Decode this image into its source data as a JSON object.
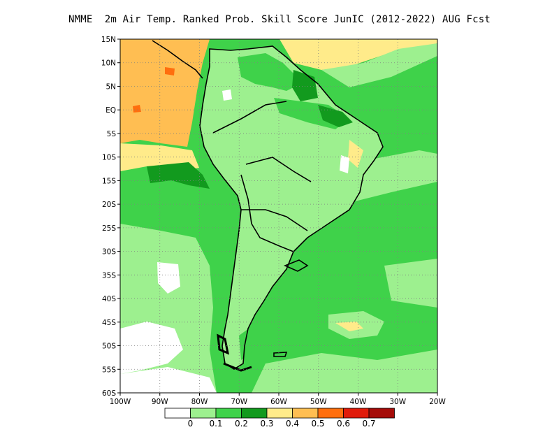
{
  "title": "NMME  2m Air Temp. Ranked Prob. Skill Score JunIC (2012-2022) AUG Fcst",
  "map": {
    "lat_labels": [
      "15N",
      "10N",
      "5N",
      "EQ",
      "5S",
      "10S",
      "15S",
      "20S",
      "25S",
      "30S",
      "35S",
      "40S",
      "45S",
      "50S",
      "55S",
      "60S"
    ],
    "lon_labels": [
      "100W",
      "90W",
      "80W",
      "70W",
      "60W",
      "50W",
      "40W",
      "30W",
      "20W"
    ],
    "lat_range": [
      -60,
      15
    ],
    "lon_range": [
      -100,
      -20
    ],
    "grid": "dotted"
  },
  "colorbar": {
    "colors": [
      "#ffffff",
      "#9df08f",
      "#3fd24a",
      "#129a1e",
      "#ffeb8a",
      "#ffbe52",
      "#ff6e0e",
      "#e01b0a",
      "#a50c09"
    ],
    "labels": [
      "0",
      "0.1",
      "0.2",
      "0.3",
      "0.4",
      "0.5",
      "0.6",
      "0.7"
    ]
  }
}
